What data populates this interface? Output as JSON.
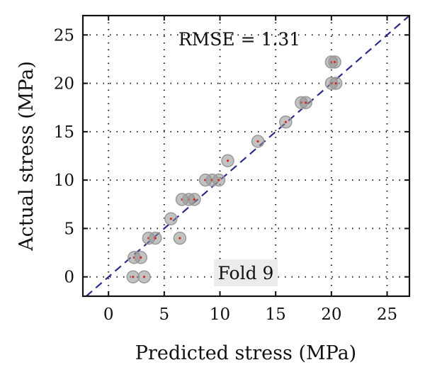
{
  "chart_data": {
    "type": "scatter",
    "title": "",
    "xlabel": "Predicted stress (MPa)",
    "ylabel": "Actual stress (MPa)",
    "xlim": [
      -2.3,
      27.0
    ],
    "ylim": [
      -2.0,
      27.0
    ],
    "xticks": [
      0,
      5,
      10,
      15,
      20,
      25
    ],
    "yticks": [
      0,
      5,
      10,
      15,
      20,
      25
    ],
    "grid": "dotted",
    "annotations": {
      "rmse": "RMSE = 1.31",
      "fold": "Fold 9"
    },
    "reference_line": {
      "type": "y=x",
      "style": "dashed",
      "color": "#2b2b8c"
    },
    "marker_color": "#8f8f8f",
    "marker_center_color": "#d62a1c",
    "points": [
      {
        "x": 2.2,
        "y": 0
      },
      {
        "x": 3.2,
        "y": 0
      },
      {
        "x": 2.3,
        "y": 2
      },
      {
        "x": 2.9,
        "y": 2
      },
      {
        "x": 3.6,
        "y": 4
      },
      {
        "x": 4.2,
        "y": 4
      },
      {
        "x": 6.4,
        "y": 4
      },
      {
        "x": 5.6,
        "y": 6
      },
      {
        "x": 6.6,
        "y": 8
      },
      {
        "x": 7.2,
        "y": 8
      },
      {
        "x": 7.7,
        "y": 8
      },
      {
        "x": 8.7,
        "y": 10
      },
      {
        "x": 9.3,
        "y": 10
      },
      {
        "x": 9.9,
        "y": 10
      },
      {
        "x": 10.7,
        "y": 12
      },
      {
        "x": 13.4,
        "y": 14
      },
      {
        "x": 15.9,
        "y": 16
      },
      {
        "x": 17.3,
        "y": 18
      },
      {
        "x": 17.7,
        "y": 18
      },
      {
        "x": 20.0,
        "y": 20
      },
      {
        "x": 20.4,
        "y": 20
      },
      {
        "x": 20.0,
        "y": 22.2
      },
      {
        "x": 20.3,
        "y": 22.2
      }
    ]
  }
}
